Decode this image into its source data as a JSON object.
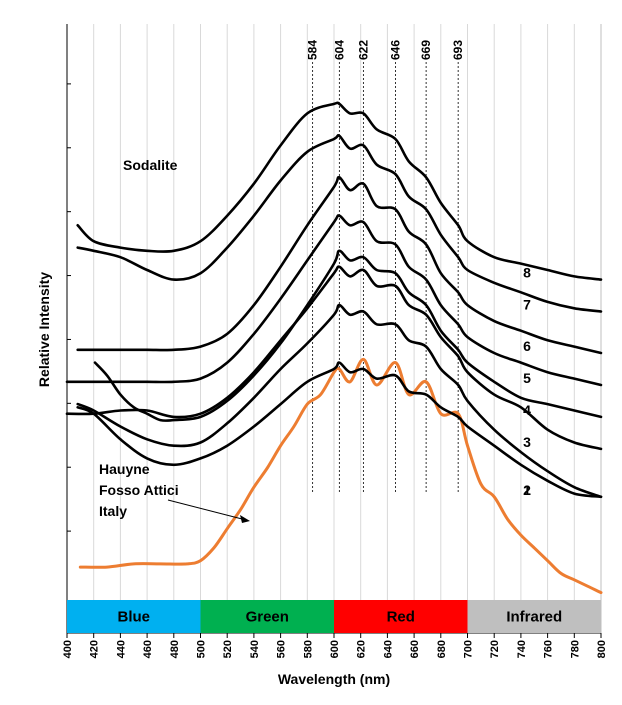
{
  "chart_data": {
    "type": "line",
    "xlabel": "Wavelength (nm)",
    "ylabel": "Relative Intensity",
    "xlim": [
      400,
      800
    ],
    "ylim": [
      0,
      9
    ],
    "x_ticks": [
      400,
      420,
      440,
      460,
      480,
      500,
      520,
      540,
      560,
      580,
      600,
      620,
      640,
      660,
      680,
      700,
      720,
      740,
      760,
      780,
      800
    ],
    "grid": "vertical",
    "spectral_bands": [
      {
        "label": "Blue",
        "range": [
          400,
          500
        ],
        "color": "#00b0f0"
      },
      {
        "label": "Green",
        "range": [
          500,
          600
        ],
        "color": "#00b050"
      },
      {
        "label": "Red",
        "range": [
          600,
          700
        ],
        "color": "#ff0000"
      },
      {
        "label": "Infrared",
        "range": [
          700,
          800
        ],
        "color": "#bfbfbf"
      }
    ],
    "peak_lines": [
      584,
      604,
      622,
      646,
      669,
      693
    ],
    "annotations": {
      "sodalite": "Sodalite",
      "hauyne": [
        "Hauyne",
        "Fosso Attici",
        "Italy"
      ]
    },
    "series": [
      {
        "name": "Hauyne",
        "color": "#ed7d31",
        "x": [
          410,
          430,
          450,
          470,
          490,
          500,
          510,
          520,
          530,
          540,
          550,
          560,
          570,
          580,
          590,
          600,
          604,
          612,
          622,
          632,
          646,
          656,
          669,
          680,
          693,
          700,
          710,
          720,
          730,
          740,
          750,
          760,
          770,
          780,
          790,
          800
        ],
        "y": [
          0.5,
          0.5,
          0.55,
          0.55,
          0.55,
          0.6,
          0.8,
          1.1,
          1.4,
          1.75,
          2.05,
          2.4,
          2.7,
          3.05,
          3.2,
          3.55,
          3.6,
          3.4,
          3.75,
          3.35,
          3.7,
          3.2,
          3.4,
          2.9,
          2.9,
          2.4,
          1.8,
          1.6,
          1.25,
          1.0,
          0.8,
          0.6,
          0.4,
          0.3,
          0.2,
          0.1
        ]
      },
      {
        "name": "1",
        "color": "#000000",
        "x": [
          408,
          420,
          440,
          460,
          480,
          500,
          520,
          540,
          560,
          580,
          600,
          604,
          612,
          622,
          632,
          646,
          656,
          669,
          680,
          693,
          700,
          720,
          740,
          760,
          780,
          800
        ],
        "y": [
          3.0,
          2.9,
          2.5,
          2.2,
          2.1,
          2.2,
          2.4,
          2.7,
          3.05,
          3.4,
          3.6,
          3.7,
          3.55,
          3.6,
          3.45,
          3.5,
          3.25,
          3.2,
          3.0,
          2.85,
          2.7,
          2.4,
          2.1,
          1.85,
          1.65,
          1.6
        ]
      },
      {
        "name": "2",
        "color": "#000000",
        "x": [
          408,
          420,
          440,
          460,
          480,
          500,
          520,
          540,
          560,
          580,
          600,
          604,
          612,
          622,
          632,
          646,
          656,
          669,
          680,
          693,
          700,
          720,
          740,
          760,
          780,
          800
        ],
        "y": [
          3.05,
          2.95,
          2.7,
          2.5,
          2.4,
          2.45,
          2.75,
          3.15,
          3.6,
          4.0,
          4.45,
          4.6,
          4.45,
          4.5,
          4.3,
          4.3,
          4.05,
          3.95,
          3.6,
          3.35,
          3.1,
          2.65,
          2.3,
          2.0,
          1.75,
          1.6
        ]
      },
      {
        "name": "3",
        "color": "#000000",
        "x": [
          400,
          420,
          440,
          460,
          480,
          500,
          520,
          540,
          560,
          580,
          600,
          604,
          612,
          622,
          632,
          646,
          656,
          669,
          680,
          693,
          700,
          720,
          740,
          760,
          780,
          800
        ],
        "y": [
          2.9,
          2.9,
          2.95,
          2.95,
          2.85,
          2.9,
          3.15,
          3.55,
          4.05,
          4.55,
          5.1,
          5.2,
          5.05,
          5.15,
          4.9,
          4.9,
          4.6,
          4.45,
          4.1,
          3.8,
          3.55,
          3.2,
          3.0,
          2.65,
          2.45,
          2.35
        ]
      },
      {
        "name": "4",
        "color": "#000000",
        "x": [
          421,
          430,
          440,
          450,
          460,
          470,
          480,
          500,
          520,
          540,
          560,
          580,
          600,
          604,
          612,
          622,
          632,
          646,
          656,
          669,
          680,
          693,
          700,
          720,
          740,
          760,
          780,
          800
        ],
        "y": [
          3.7,
          3.5,
          3.2,
          3.0,
          2.9,
          2.8,
          2.8,
          2.85,
          3.1,
          3.5,
          4.0,
          4.6,
          5.25,
          5.45,
          5.3,
          5.35,
          5.15,
          5.1,
          4.8,
          4.6,
          4.2,
          3.9,
          3.7,
          3.4,
          3.15,
          3.05,
          2.95,
          2.85
        ]
      },
      {
        "name": "5",
        "color": "#000000",
        "x": [
          400,
          420,
          440,
          460,
          480,
          500,
          520,
          540,
          560,
          580,
          600,
          604,
          612,
          622,
          632,
          646,
          656,
          669,
          680,
          693,
          700,
          720,
          740,
          760,
          780,
          800
        ],
        "y": [
          3.4,
          3.4,
          3.4,
          3.4,
          3.4,
          3.45,
          3.7,
          4.15,
          4.7,
          5.3,
          5.9,
          6.0,
          5.85,
          5.9,
          5.6,
          5.55,
          5.2,
          5.0,
          4.6,
          4.3,
          4.1,
          3.85,
          3.7,
          3.55,
          3.45,
          3.35
        ]
      },
      {
        "name": "6",
        "color": "#000000",
        "x": [
          408,
          420,
          440,
          460,
          480,
          500,
          520,
          540,
          560,
          580,
          600,
          604,
          612,
          622,
          632,
          646,
          656,
          669,
          680,
          693,
          700,
          720,
          740,
          760,
          780,
          800
        ],
        "y": [
          3.9,
          3.9,
          3.9,
          3.9,
          3.9,
          3.95,
          4.15,
          4.6,
          5.2,
          5.85,
          6.45,
          6.6,
          6.4,
          6.5,
          6.15,
          6.1,
          5.75,
          5.55,
          5.1,
          4.8,
          4.6,
          4.35,
          4.2,
          4.05,
          3.95,
          3.85
        ]
      },
      {
        "name": "7",
        "color": "#000000",
        "x": [
          408,
          420,
          440,
          460,
          480,
          500,
          520,
          540,
          560,
          580,
          600,
          604,
          612,
          622,
          632,
          646,
          656,
          669,
          680,
          693,
          700,
          720,
          740,
          760,
          780,
          800
        ],
        "y": [
          5.5,
          5.45,
          5.35,
          5.15,
          5.0,
          5.1,
          5.5,
          6.0,
          6.55,
          7.0,
          7.2,
          7.25,
          7.05,
          7.1,
          6.8,
          6.65,
          6.3,
          6.1,
          5.7,
          5.35,
          5.15,
          4.95,
          4.8,
          4.65,
          4.55,
          4.5
        ]
      },
      {
        "name": "8",
        "color": "#000000",
        "x": [
          408,
          420,
          440,
          460,
          480,
          500,
          520,
          540,
          560,
          580,
          600,
          604,
          612,
          622,
          632,
          646,
          656,
          669,
          680,
          693,
          700,
          720,
          740,
          760,
          780,
          800
        ],
        "y": [
          5.85,
          5.6,
          5.5,
          5.45,
          5.45,
          5.6,
          6.0,
          6.5,
          7.1,
          7.6,
          7.75,
          7.75,
          7.6,
          7.6,
          7.35,
          7.2,
          6.85,
          6.6,
          6.2,
          5.85,
          5.6,
          5.35,
          5.25,
          5.15,
          5.05,
          5.0
        ]
      }
    ]
  }
}
